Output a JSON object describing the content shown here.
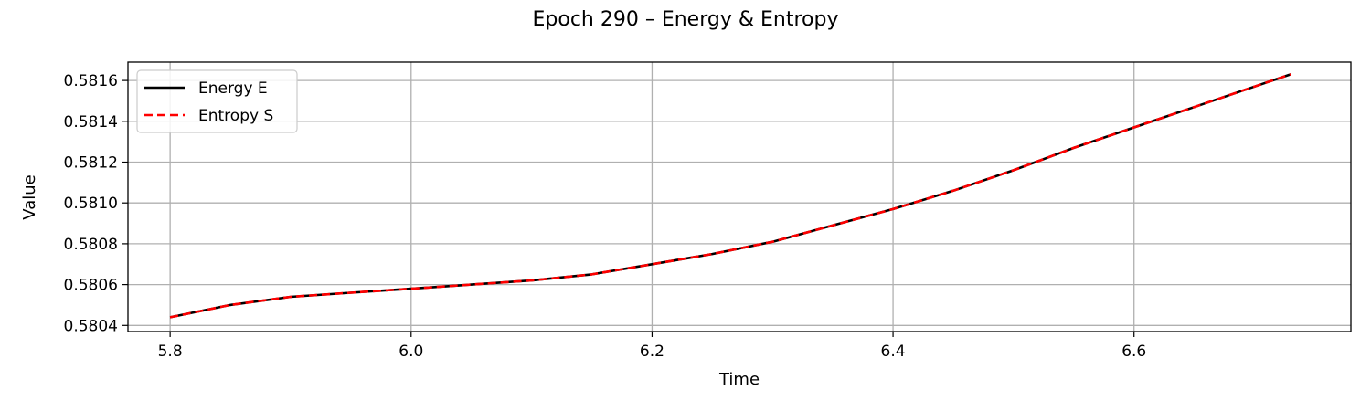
{
  "chart_data": {
    "type": "line",
    "title": "Epoch 290 – Energy & Entropy",
    "xlabel": "Time",
    "ylabel": "Value",
    "xlim": [
      5.765,
      6.78
    ],
    "ylim": [
      0.58037,
      0.58169
    ],
    "xticks": [
      5.8,
      6.0,
      6.2,
      6.4,
      6.6
    ],
    "xtick_labels": [
      "5.8",
      "6.0",
      "6.2",
      "6.4",
      "6.6"
    ],
    "yticks": [
      0.5804,
      0.5806,
      0.5808,
      0.581,
      0.5812,
      0.5814,
      0.5816
    ],
    "ytick_labels": [
      "0.5804",
      "0.5806",
      "0.5808",
      "0.5810",
      "0.5812",
      "0.5814",
      "0.5816"
    ],
    "grid": true,
    "legend": "top-left",
    "x": [
      5.8,
      5.85,
      5.9,
      5.95,
      6.0,
      6.05,
      6.1,
      6.15,
      6.2,
      6.25,
      6.3,
      6.35,
      6.4,
      6.45,
      6.5,
      6.55,
      6.6,
      6.65,
      6.7,
      6.73
    ],
    "series": [
      {
        "name": "Energy E",
        "color": "#000000",
        "style": "solid",
        "values": [
          0.58044,
          0.5805,
          0.58054,
          0.58056,
          0.58058,
          0.5806,
          0.58062,
          0.58065,
          0.5807,
          0.58075,
          0.58081,
          0.58089,
          0.58097,
          0.58106,
          0.58116,
          0.58127,
          0.58137,
          0.58147,
          0.58157,
          0.58163
        ]
      },
      {
        "name": "Entropy S",
        "color": "#ff0000",
        "style": "dashed",
        "values": [
          0.58044,
          0.5805,
          0.58054,
          0.58056,
          0.58058,
          0.5806,
          0.58062,
          0.58065,
          0.5807,
          0.58075,
          0.58081,
          0.58089,
          0.58097,
          0.58106,
          0.58116,
          0.58127,
          0.58137,
          0.58147,
          0.58157,
          0.58163
        ]
      }
    ]
  }
}
